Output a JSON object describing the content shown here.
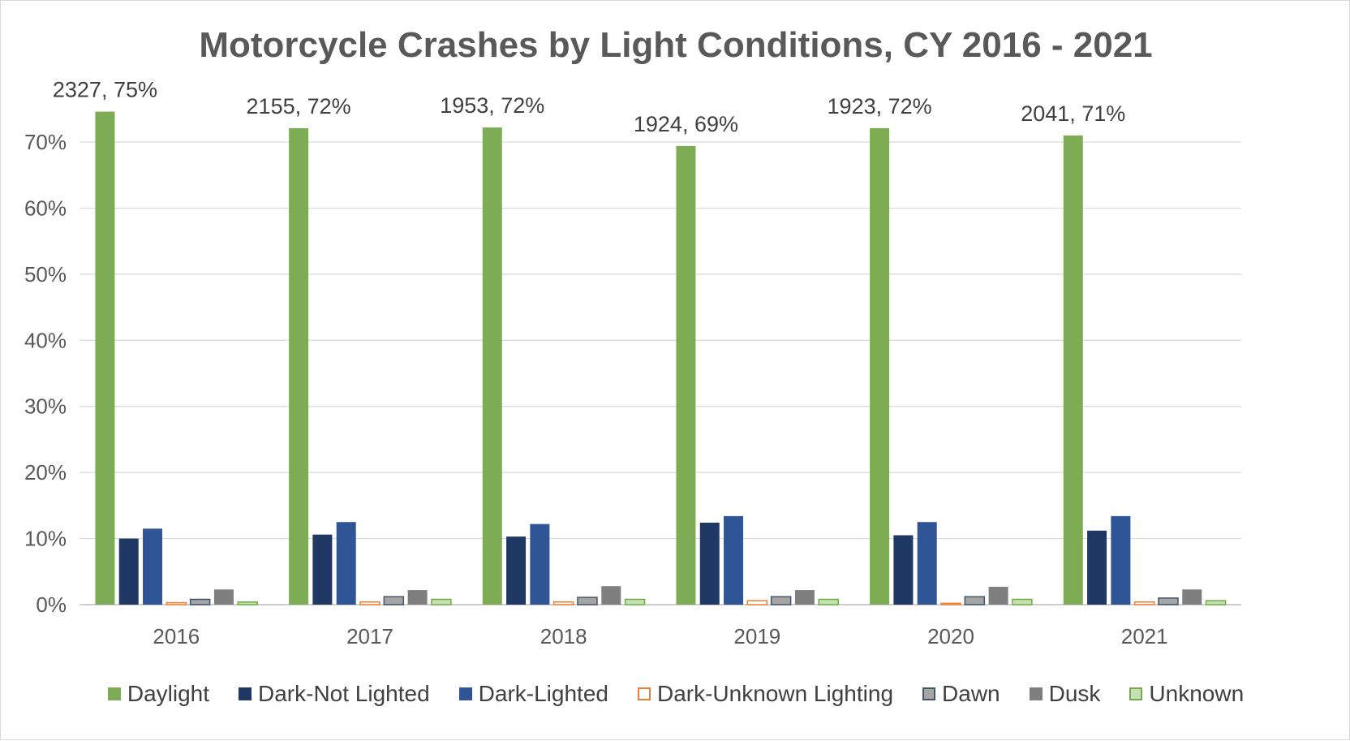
{
  "chart_data": {
    "type": "bar",
    "title": "Motorcycle Crashes by Light Conditions, CY 2016 - 2021",
    "categories": [
      "2016",
      "2017",
      "2018",
      "2019",
      "2020",
      "2021"
    ],
    "ylim": [
      0,
      0.75
    ],
    "yticks": [
      "0%",
      "10%",
      "20%",
      "30%",
      "40%",
      "50%",
      "60%",
      "70%"
    ],
    "yticks_values": [
      0,
      0.1,
      0.2,
      0.3,
      0.4,
      0.5,
      0.6,
      0.7
    ],
    "grid": true,
    "legend_position": "bottom",
    "series": [
      {
        "name": "Daylight",
        "color": "#7dac55",
        "fill": "#7dac55",
        "stroke": "#7dac55",
        "values": [
          0.746,
          0.721,
          0.722,
          0.694,
          0.721,
          0.71
        ],
        "labels": [
          "2327, 75%",
          "2155, 72%",
          "1953, 72%",
          "1924, 69%",
          "1923, 72%",
          "2041, 71%"
        ]
      },
      {
        "name": "Dark-Not Lighted",
        "color": "#203864",
        "fill": "#203864",
        "stroke": "#203864",
        "values": [
          0.1,
          0.106,
          0.103,
          0.124,
          0.105,
          0.112
        ]
      },
      {
        "name": "Dark-Lighted",
        "color": "#2f5597",
        "fill": "#2f5597",
        "stroke": "#2f5597",
        "values": [
          0.115,
          0.125,
          0.122,
          0.134,
          0.125,
          0.134
        ]
      },
      {
        "name": "Dark-Unknown Lighting",
        "color": "#ed7d31",
        "fill": "#ffffff",
        "stroke": "#ed7d31",
        "values": [
          0.003,
          0.004,
          0.004,
          0.006,
          0.002,
          0.004
        ]
      },
      {
        "name": "Dawn",
        "color": "#44546a",
        "fill": "#a5a5a5",
        "stroke": "#44546a",
        "values": [
          0.008,
          0.012,
          0.011,
          0.012,
          0.012,
          0.01
        ]
      },
      {
        "name": "Dusk",
        "color": "#7f7f7f",
        "fill": "#7f7f7f",
        "stroke": "#7f7f7f",
        "values": [
          0.023,
          0.022,
          0.028,
          0.022,
          0.027,
          0.023
        ]
      },
      {
        "name": "Unknown",
        "color": "#70ad47",
        "fill": "#c5e0b4",
        "stroke": "#70ad47",
        "values": [
          0.004,
          0.008,
          0.008,
          0.008,
          0.008,
          0.006
        ]
      }
    ]
  }
}
